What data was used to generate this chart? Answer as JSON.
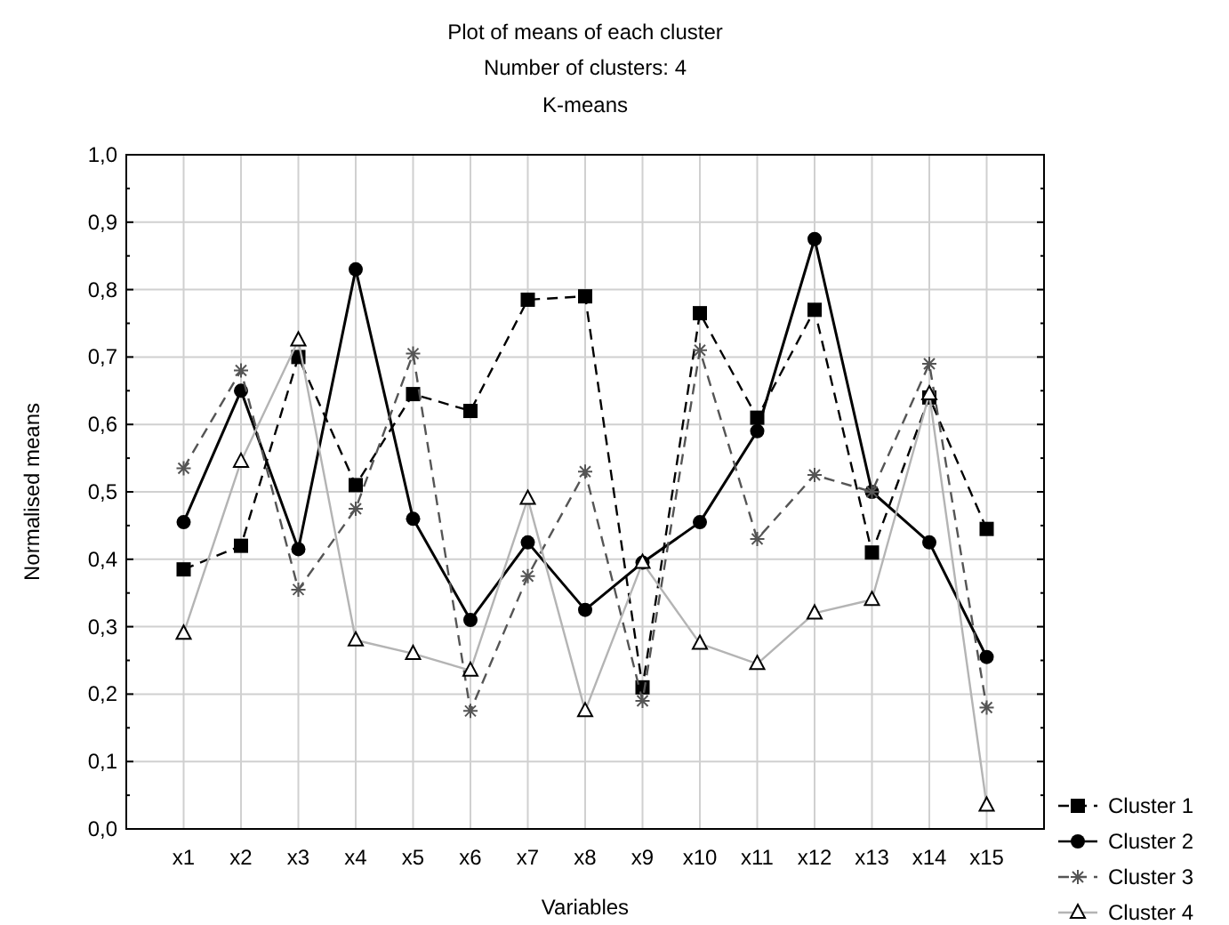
{
  "chart_data": {
    "type": "line",
    "title": "Plot of means of each cluster",
    "subtitle": "Number of clusters: 4",
    "annotations": [
      "K-means"
    ],
    "xlabel": "Variables",
    "ylabel": "Normalised means",
    "categories": [
      "x1",
      "x2",
      "x3",
      "x4",
      "x5",
      "x6",
      "x7",
      "x8",
      "x9",
      "x10",
      "x11",
      "x12",
      "x13",
      "x14",
      "x15"
    ],
    "ylim": [
      0,
      1
    ],
    "yticks": [
      {
        "value": 0,
        "label": "0,0"
      },
      {
        "value": 0.1,
        "label": "0,1"
      },
      {
        "value": 0.2,
        "label": "0,2"
      },
      {
        "value": 0.3,
        "label": "0,3"
      },
      {
        "value": 0.4,
        "label": "0,4"
      },
      {
        "value": 0.5,
        "label": "0,5"
      },
      {
        "value": 0.6,
        "label": "0,6"
      },
      {
        "value": 0.7,
        "label": "0,7"
      },
      {
        "value": 0.8,
        "label": "0,8"
      },
      {
        "value": 0.9,
        "label": "0,9"
      },
      {
        "value": 1,
        "label": "1,0"
      }
    ],
    "grid": true,
    "legend": "bottom right",
    "series": [
      {
        "name": "Cluster 1",
        "color": "#000000",
        "marker": "square",
        "line_style": "dashed",
        "values": [
          0.385,
          0.42,
          0.7,
          0.51,
          0.645,
          0.62,
          0.785,
          0.79,
          0.21,
          0.765,
          0.61,
          0.77,
          0.41,
          0.64,
          0.445
        ]
      },
      {
        "name": "Cluster 2",
        "color": "#000000",
        "marker": "circle",
        "line_style": "solid",
        "values": [
          0.455,
          0.65,
          0.415,
          0.83,
          0.46,
          0.31,
          0.425,
          0.325,
          0.395,
          0.455,
          0.59,
          0.875,
          0.5,
          0.425,
          0.255
        ]
      },
      {
        "name": "Cluster 3",
        "color": "#555555",
        "marker": "cross",
        "line_style": "dashed",
        "values": [
          0.535,
          0.68,
          0.355,
          0.475,
          0.705,
          0.175,
          0.375,
          0.53,
          0.19,
          0.71,
          0.43,
          0.525,
          0.5,
          0.69,
          0.18
        ]
      },
      {
        "name": "Cluster 4",
        "color": "#b4b4b4",
        "marker": "triangle",
        "line_style": "solid",
        "values": [
          0.29,
          0.545,
          0.725,
          0.28,
          0.26,
          0.235,
          0.49,
          0.175,
          0.395,
          0.275,
          0.245,
          0.32,
          0.34,
          0.645,
          0.035
        ]
      }
    ]
  }
}
